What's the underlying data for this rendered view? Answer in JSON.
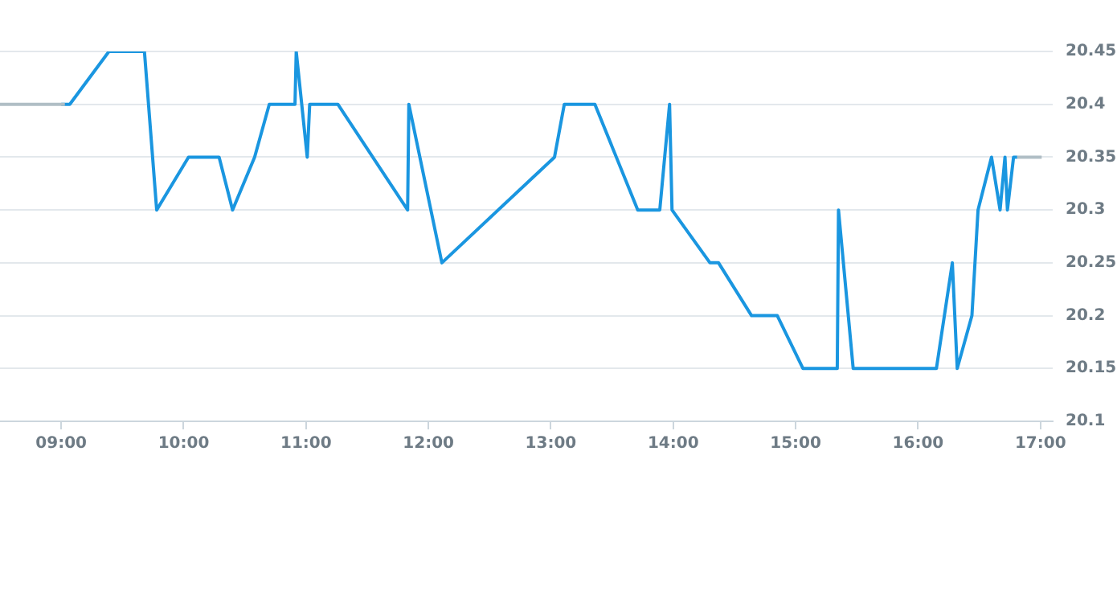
{
  "chart_data": {
    "type": "line",
    "xlim": [
      8.5,
      17.1
    ],
    "ylim": [
      20.1,
      20.45
    ],
    "xticks": [
      {
        "value": 9,
        "label": "09:00"
      },
      {
        "value": 10,
        "label": "10:00"
      },
      {
        "value": 11,
        "label": "11:00"
      },
      {
        "value": 12,
        "label": "12:00"
      },
      {
        "value": 13,
        "label": "13:00"
      },
      {
        "value": 14,
        "label": "14:00"
      },
      {
        "value": 15,
        "label": "15:00"
      },
      {
        "value": 16,
        "label": "16:00"
      },
      {
        "value": 17,
        "label": "17:00"
      }
    ],
    "yticks": [
      20.1,
      20.15,
      20.2,
      20.25,
      20.3,
      20.35,
      20.4,
      20.45
    ],
    "grid": "y",
    "legend": false,
    "marker": "none",
    "line_style": "solid",
    "series": [
      {
        "color": "#b0bec5",
        "x": [
          8.5,
          9.03,
          12,
          16.81,
          17.01
        ],
        "values": [
          20.4,
          20.4,
          null,
          20.35,
          20.35
        ]
      },
      {
        "color": "#1a96e0",
        "x": [
          9.0,
          9.07,
          9.39,
          9.68,
          9.78,
          10.04,
          10.29,
          10.4,
          10.58,
          10.7,
          10.91,
          10.92,
          11.01,
          11.03,
          11.26,
          11.83,
          11.84,
          12.11,
          13.03,
          13.11,
          13.36,
          13.71,
          13.89,
          13.97,
          13.99,
          14.3,
          14.37,
          14.64,
          14.85,
          15.06,
          15.34,
          15.35,
          15.47,
          16.15,
          16.28,
          16.32,
          16.44,
          16.49,
          16.6,
          16.67,
          16.71,
          16.73,
          16.78,
          16.81
        ],
        "values": [
          20.4,
          20.4,
          20.45,
          20.45,
          20.3,
          20.35,
          20.35,
          20.3,
          20.35,
          20.4,
          20.4,
          20.45,
          20.35,
          20.4,
          20.4,
          20.3,
          20.4,
          20.25,
          20.35,
          20.4,
          20.4,
          20.3,
          20.3,
          20.4,
          20.3,
          20.25,
          20.25,
          20.2,
          20.2,
          20.15,
          20.15,
          20.3,
          20.15,
          20.15,
          20.25,
          20.15,
          20.2,
          20.3,
          20.35,
          20.3,
          20.35,
          20.3,
          20.35,
          20.35
        ]
      }
    ]
  }
}
